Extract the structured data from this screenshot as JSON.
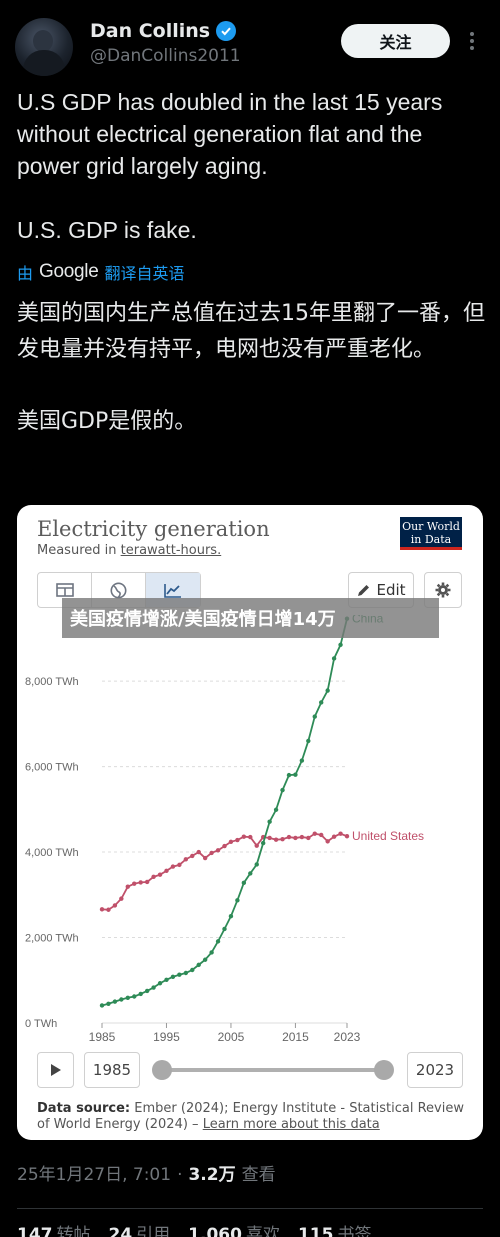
{
  "author": {
    "name": "Dan Collins",
    "handle": "@DanCollins2011",
    "follow_label": "关注"
  },
  "tweet": {
    "line1": "U.S GDP has doubled in the last 15 years without electrical generation flat and the power grid largely aging.",
    "line2": "U.S. GDP is fake."
  },
  "translation": {
    "by": "由",
    "provider": "Google",
    "label": "翻译自英语",
    "text1": "美国的国内生产总值在过去15年里翻了一番，但发电量并没有持平，电网也没有严重老化。",
    "text2": "美国GDP是假的。"
  },
  "card": {
    "title": "Electricity generation",
    "subtitle_prefix": "Measured in ",
    "subtitle_unit": "terawatt-hours.",
    "brand_line1": "Our World",
    "brand_line2": "in Data",
    "edit_label": "Edit",
    "start_year": "1985",
    "end_year": "2023",
    "source_label": "Data source:",
    "source_text": " Ember (2024); Energy Institute - Statistical Review of World Energy (2024) – ",
    "source_link": "Learn more about this data"
  },
  "banner": "美国疫情增涨/美国疫情日增14万",
  "meta": {
    "datetime": "25年1月27日, 7:01",
    "sep": "·",
    "views": "3.2万",
    "views_label": "查看"
  },
  "stats": {
    "reposts": "147",
    "reposts_label": "转帖",
    "quotes": "24",
    "quotes_label": "引用",
    "likes": "1,060",
    "likes_label": "喜欢",
    "bookmarks": "115",
    "bookmarks_label": "书签"
  },
  "colors": {
    "china": "#2e8b57",
    "us": "#c0506a",
    "verified": "#1d9bf0"
  },
  "icons": [
    "verified-badge-icon",
    "more-icon",
    "table-icon",
    "globe-icon",
    "line-chart-icon",
    "pencil-icon",
    "gear-icon",
    "play-icon"
  ],
  "chart_data": {
    "type": "line",
    "title": "Electricity generation",
    "subtitle": "Measured in terawatt-hours.",
    "ylim": [
      0,
      9500
    ],
    "yticks": [
      0,
      2000,
      4000,
      6000,
      8000
    ],
    "ytick_labels": [
      "0 TWh",
      "2,000 TWh",
      "4,000 TWh",
      "6,000 TWh",
      "8,000 TWh"
    ],
    "xlim": [
      1985,
      2023
    ],
    "xticks": [
      1985,
      1995,
      2005,
      2015,
      2023
    ],
    "series": [
      {
        "name": "United States",
        "x": [
          1985,
          1986,
          1987,
          1988,
          1989,
          1990,
          1991,
          1992,
          1993,
          1994,
          1995,
          1996,
          1997,
          1998,
          1999,
          2000,
          2001,
          2002,
          2003,
          2004,
          2005,
          2006,
          2007,
          2008,
          2009,
          2010,
          2011,
          2012,
          2013,
          2014,
          2015,
          2016,
          2017,
          2018,
          2019,
          2020,
          2021,
          2022,
          2023
        ],
        "values": [
          2660,
          2650,
          2750,
          2910,
          3190,
          3260,
          3290,
          3300,
          3420,
          3470,
          3560,
          3660,
          3700,
          3830,
          3910,
          4000,
          3860,
          3980,
          4040,
          4140,
          4240,
          4280,
          4360,
          4350,
          4150,
          4350,
          4330,
          4290,
          4300,
          4350,
          4330,
          4350,
          4330,
          4430,
          4400,
          4250,
          4360,
          4430,
          4370
        ]
      },
      {
        "name": "China",
        "x": [
          1985,
          1986,
          1987,
          1988,
          1989,
          1990,
          1991,
          1992,
          1993,
          1994,
          1995,
          1996,
          1997,
          1998,
          1999,
          2000,
          2001,
          2002,
          2003,
          2004,
          2005,
          2006,
          2007,
          2008,
          2009,
          2010,
          2011,
          2012,
          2013,
          2014,
          2015,
          2016,
          2017,
          2018,
          2019,
          2020,
          2021,
          2022,
          2023
        ],
        "values": [
          410,
          450,
          500,
          550,
          590,
          620,
          680,
          750,
          830,
          930,
          1010,
          1080,
          1130,
          1170,
          1240,
          1360,
          1480,
          1650,
          1910,
          2200,
          2500,
          2870,
          3280,
          3500,
          3710,
          4210,
          4710,
          4990,
          5450,
          5800,
          5810,
          6140,
          6600,
          7170,
          7500,
          7780,
          8530,
          8850,
          9460
        ]
      }
    ]
  }
}
